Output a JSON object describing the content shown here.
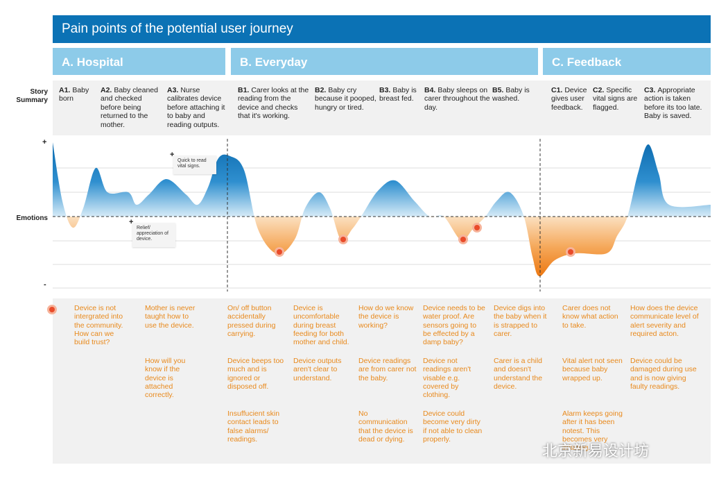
{
  "header": {
    "title": "Pain points of the potential user journey"
  },
  "sections": [
    {
      "label": "A. Hospital"
    },
    {
      "label": "B. Everyday"
    },
    {
      "label": "C. Feedback"
    }
  ],
  "story": {
    "label": "Story Summary",
    "items": [
      {
        "id": "A1.",
        "text": "Baby born"
      },
      {
        "id": "A2.",
        "text": "Baby cleaned and checked before being returned to the mother."
      },
      {
        "id": "A3.",
        "text": "Nurse calibrates device before attaching it to baby and reading outputs."
      },
      {
        "id": "B1.",
        "text": "Carer looks at the reading from the device and checks that it's working."
      },
      {
        "id": "B2.",
        "text": "Baby cry because it pooped, hungry or tired."
      },
      {
        "id": "B3.",
        "text": "Baby is breast fed."
      },
      {
        "id": "B4.",
        "text": "Baby sleeps on carer throughout the day."
      },
      {
        "id": "B5.",
        "text": "Baby is washed."
      },
      {
        "id": "C1.",
        "text": "Device gives user feedback."
      },
      {
        "id": "C2.",
        "text": "Specific vital signs are flagged."
      },
      {
        "id": "C3.",
        "text": "Appropriate action is taken before its too late. Baby is saved."
      }
    ]
  },
  "emotions": {
    "label": "Emotions",
    "plus": "+",
    "minus": "-",
    "notes": [
      {
        "sign": "+",
        "text": "Quick to read vital signs."
      },
      {
        "sign": "+",
        "text": "Relief/ appreciation of device."
      }
    ]
  },
  "pain_points": {
    "columns": [
      [
        "Device is not intergrated into the community. How can we build trust?"
      ],
      [
        "Mother is never taught how to use the device.",
        "How will you know if the device is attached correctly."
      ],
      [
        "On/ off button accidentally pressed during carrying.",
        "Device beeps too much and is ignored or disposed off.",
        "Insuffucient skin contact leads to false alarms/ readings."
      ],
      [
        "Device is uncomfortable during breast feeding for both mother and child.",
        "Device outputs aren't clear to understand."
      ],
      [
        "How do we know the device is working?",
        "Device readings are from carer not the baby.",
        "No communication that the device is dead or dying."
      ],
      [
        "Device needs to be water proof. Are sensors going to be effected by a damp baby?",
        "Device not readings aren't visable e.g. covered by clothing.",
        "Device could become very dirty if not able to clean properly."
      ],
      [
        "Device digs into the baby when it is strapped to carer.",
        "Carer is a child and doesn't understand the device."
      ],
      [
        "Carer does not know what action to take.",
        "Vital alert not seen because baby wrapped up.",
        "Alarm keeps going after it has been notest. This becomes very irritating."
      ],
      [
        "How does the device communicate level of alert severity and required acton.",
        "Device could be damaged during use and is now giving faulty readings."
      ]
    ]
  },
  "watermark": "北京新易设计坊"
}
